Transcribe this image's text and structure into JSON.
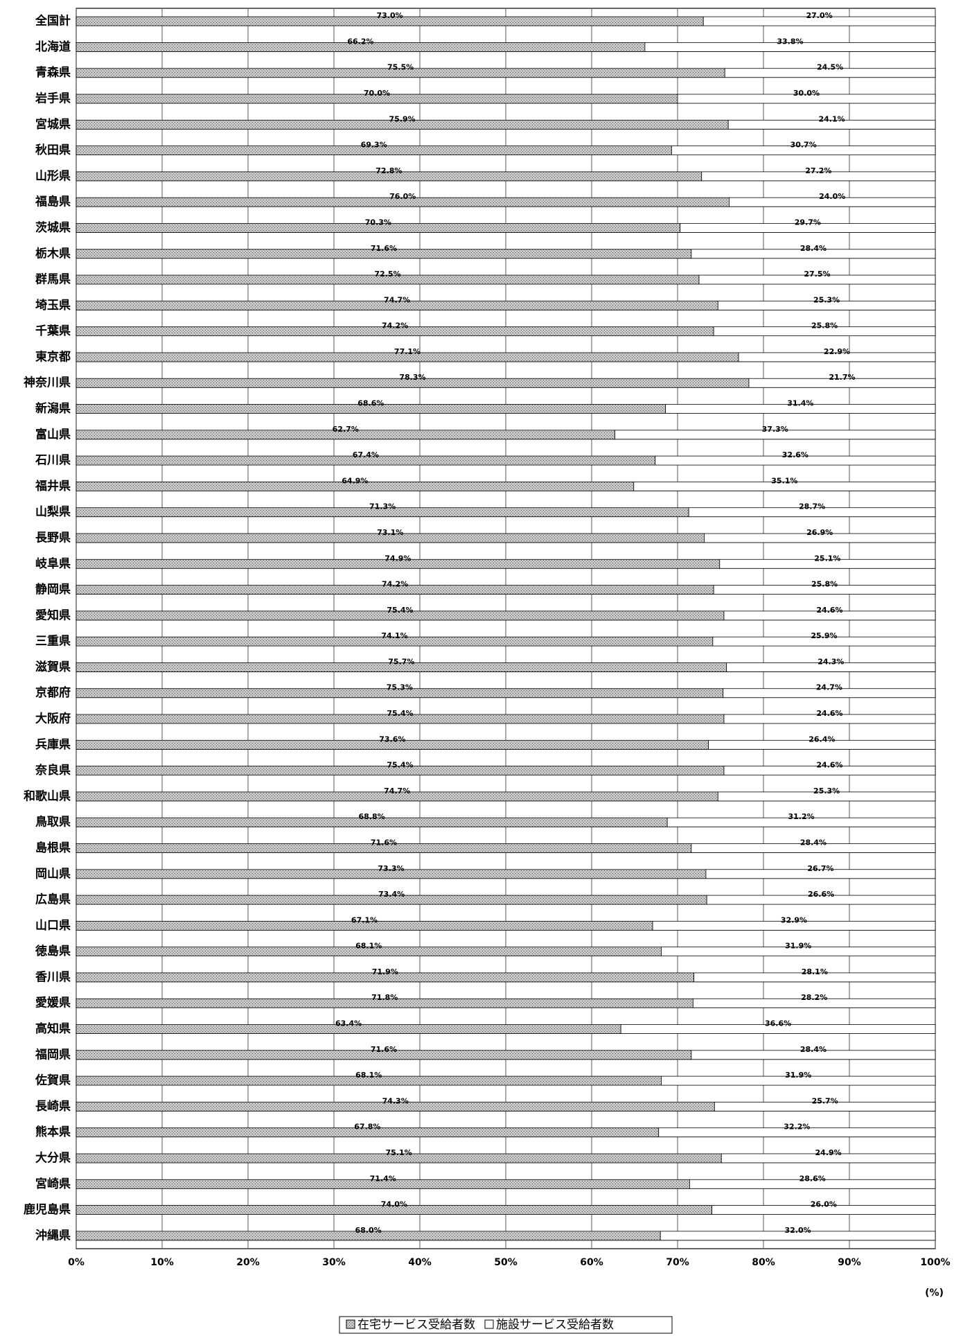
{
  "chart_data": {
    "type": "stacked-bar-horizontal",
    "x_label": "(%)",
    "categories": [
      "全国計",
      "北海道",
      "青森県",
      "岩手県",
      "宮城県",
      "秋田県",
      "山形県",
      "福島県",
      "茨城県",
      "栃木県",
      "群馬県",
      "埼玉県",
      "千葉県",
      "東京都",
      "神奈川県",
      "新潟県",
      "富山県",
      "石川県",
      "福井県",
      "山梨県",
      "長野県",
      "岐阜県",
      "静岡県",
      "愛知県",
      "三重県",
      "滋賀県",
      "京都府",
      "大阪府",
      "兵庫県",
      "奈良県",
      "和歌山県",
      "鳥取県",
      "島根県",
      "岡山県",
      "広島県",
      "山口県",
      "徳島県",
      "香川県",
      "愛媛県",
      "高知県",
      "福岡県",
      "佐賀県",
      "長崎県",
      "熊本県",
      "大分県",
      "宮崎県",
      "鹿児島県",
      "沖縄県"
    ],
    "series": [
      {
        "name": "在宅サービス受給者数",
        "color": "#a8a8a8",
        "values": [
          73.0,
          66.2,
          75.5,
          70.0,
          75.9,
          69.3,
          72.8,
          76.0,
          70.3,
          71.6,
          72.5,
          74.7,
          74.2,
          77.1,
          78.3,
          68.6,
          62.7,
          67.4,
          64.9,
          71.3,
          73.1,
          74.9,
          74.2,
          75.4,
          74.1,
          75.7,
          75.3,
          75.4,
          73.6,
          75.4,
          74.7,
          68.8,
          71.6,
          73.3,
          73.4,
          67.1,
          68.1,
          71.9,
          71.8,
          63.4,
          71.6,
          68.1,
          74.3,
          67.8,
          75.1,
          71.4,
          74.0,
          68.0
        ],
        "value_labels": [
          "73.0%",
          "66.2%",
          "75.5%",
          "70.0%",
          "75.9%",
          "69.3%",
          "72.8%",
          "76.0%",
          "70.3%",
          "71.6%",
          "72.5%",
          "74.7%",
          "74.2%",
          "77.1%",
          "78.3%",
          "68.6%",
          "62.7%",
          "67.4%",
          "64.9%",
          "71.3%",
          "73.1%",
          "74.9%",
          "74.2%",
          "75.4%",
          "74.1%",
          "75.7%",
          "75.3%",
          "75.4%",
          "73.6%",
          "75.4%",
          "74.7%",
          "68.8%",
          "71.6%",
          "73.3%",
          "73.4%",
          "67.1%",
          "68.1%",
          "71.9%",
          "71.8%",
          "63.4%",
          "71.6%",
          "68.1%",
          "74.3%",
          "67.8%",
          "75.1%",
          "71.4%",
          "74.0%",
          "68.0%"
        ]
      },
      {
        "name": "施設サービス受給者数",
        "color": "#ffffff",
        "values": [
          27.0,
          33.8,
          24.5,
          30.0,
          24.1,
          30.7,
          27.2,
          24.0,
          29.7,
          28.4,
          27.5,
          25.3,
          25.8,
          22.9,
          21.7,
          31.4,
          37.3,
          32.6,
          35.1,
          28.7,
          26.9,
          25.1,
          25.8,
          24.6,
          25.9,
          24.3,
          24.7,
          24.6,
          26.4,
          24.6,
          25.3,
          31.2,
          28.4,
          26.7,
          26.6,
          32.9,
          31.9,
          28.1,
          28.2,
          36.6,
          28.4,
          31.9,
          25.7,
          32.2,
          24.9,
          28.6,
          26.0,
          32.0
        ],
        "value_labels": [
          "27.0%",
          "33.8%",
          "24.5%",
          "30.0%",
          "24.1%",
          "30.7%",
          "27.2%",
          "24.0%",
          "29.7%",
          "28.4%",
          "27.5%",
          "25.3%",
          "25.8%",
          "22.9%",
          "21.7%",
          "31.4%",
          "37.3%",
          "32.6%",
          "35.1%",
          "28.7%",
          "26.9%",
          "25.1%",
          "25.8%",
          "24.6%",
          "25.9%",
          "24.3%",
          "24.7%",
          "24.6%",
          "26.4%",
          "24.6%",
          "25.3%",
          "31.2%",
          "28.4%",
          "26.7%",
          "26.6%",
          "32.9%",
          "31.9%",
          "28.1%",
          "28.2%",
          "36.6%",
          "28.4%",
          "31.9%",
          "25.7%",
          "32.2%",
          "24.9%",
          "28.6%",
          "26.0%",
          "32.0%"
        ]
      }
    ],
    "xlim": [
      0,
      100
    ],
    "xticks": [
      {
        "value": 0,
        "label": "0%"
      },
      {
        "value": 10,
        "label": "10%"
      },
      {
        "value": 20,
        "label": "20%"
      },
      {
        "value": 30,
        "label": "30%"
      },
      {
        "value": 40,
        "label": "40%"
      },
      {
        "value": 50,
        "label": "50%"
      },
      {
        "value": 60,
        "label": "60%"
      },
      {
        "value": 70,
        "label": "70%"
      },
      {
        "value": 80,
        "label": "80%"
      },
      {
        "value": 90,
        "label": "90%"
      },
      {
        "value": 100,
        "label": "100%"
      }
    ],
    "grid": true
  }
}
